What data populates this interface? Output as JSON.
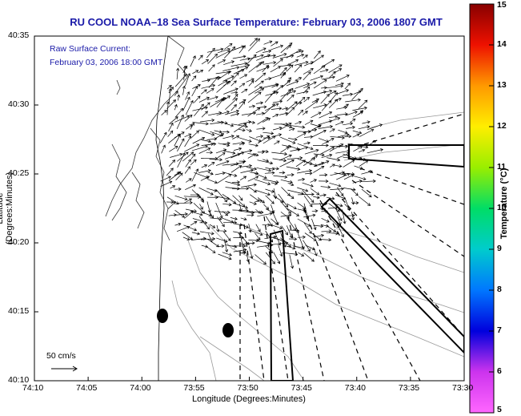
{
  "title": "RU COOL  NOAA–18  Sea Surface Temperature:  February 03, 2006 1807 GMT",
  "raw_current_label": "Raw Surface Current:",
  "raw_current_time": "February 03, 2006 18:00 GMT",
  "scale_label": "50 cm/s",
  "map": {
    "xlabel": "Longitude (Degrees:Minutes)",
    "ylabel": "Latitude (Degrees:Minutes)",
    "x_ticks": [
      "74:10",
      "74:05",
      "74:00",
      "73:55",
      "73:50",
      "73:45",
      "73:40",
      "73:35",
      "73:30"
    ],
    "y_ticks": [
      "40:35",
      "40:30",
      "40:25",
      "40:20",
      "40:15",
      "40:10"
    ]
  },
  "colorbar": {
    "label": "Temperature (°C)",
    "ticks": [
      "15",
      "14",
      "13",
      "12",
      "11",
      "10",
      "9",
      "8",
      "7",
      "6",
      "5"
    ],
    "range": [
      5,
      15
    ]
  }
}
